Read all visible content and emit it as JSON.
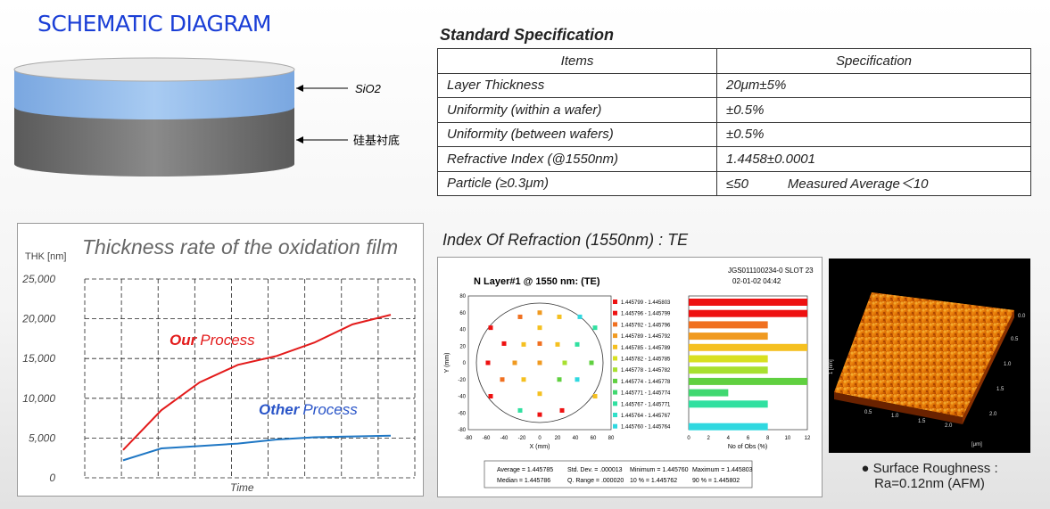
{
  "schematic": {
    "title": "SCHEMATIC DIAGRAM",
    "layer_top_label": "SiO2",
    "layer_bottom_label": "硅基衬底",
    "colors": {
      "sio2": "#8ab4e6",
      "substrate": "#6f6f6f"
    }
  },
  "spec": {
    "title": "Standard Specification",
    "headers": [
      "Items",
      "Specification"
    ],
    "rows": [
      {
        "item": "Layer Thickness",
        "value": "20μm±5%",
        "extra": ""
      },
      {
        "item": "Uniformity (within a wafer)",
        "value": "±0.5%",
        "extra": ""
      },
      {
        "item": "Uniformity (between wafers)",
        "value": "±0.5%",
        "extra": ""
      },
      {
        "item": "Refractive Index (@1550nm)",
        "value": "1.4458±0.0001",
        "extra": ""
      },
      {
        "item": "Particle (≥0.3μm)",
        "value": "≤50",
        "extra": "Measured Average＜10"
      }
    ]
  },
  "chart_data": {
    "type": "line",
    "title": "Thickness rate of the oxidation film",
    "ylabel": "THK [nm]",
    "xlabel": "Time",
    "ylim": [
      0,
      25000
    ],
    "yticks": [
      "25,000",
      "20,000",
      "15,000",
      "10,000",
      "5,000",
      "0"
    ],
    "x": [
      1,
      2,
      3,
      4,
      5,
      6,
      7,
      8
    ],
    "grid": true,
    "series": [
      {
        "name": "Our Process",
        "name_bold": "Our",
        "name_rest": "Process",
        "color": "#e31b1b",
        "values": [
          3500,
          8500,
          12000,
          14200,
          15300,
          17000,
          19300,
          20500
        ]
      },
      {
        "name": "Other Process",
        "name_bold": "Other",
        "name_rest": "Process",
        "color": "#1f77c4",
        "values": [
          2200,
          3700,
          4000,
          4300,
          4800,
          5100,
          5200,
          5300
        ]
      }
    ]
  },
  "refraction": {
    "title": "Index Of Refraction (1550nm) : TE",
    "plot_title": "N Layer#1 @ 1550 nm:   (TE)",
    "slot": "JGS011100234-0 SLOT 23",
    "date": "02-01-02 04:42",
    "map_x_label": "X (mm)",
    "map_y_label": "Y (mm)",
    "map_ticks": [
      "-80",
      "-60",
      "-40",
      "-20",
      "0",
      "20",
      "40",
      "60",
      "80"
    ],
    "hist_x_label": "No of Obs (%)",
    "hist_ticks": [
      "0",
      "2",
      "4",
      "6",
      "8",
      "10",
      "12"
    ],
    "bins": [
      {
        "range": "1.445799 - 1.445803",
        "color": "#ee1111",
        "pct": 12
      },
      {
        "range": "1.445796 - 1.445799",
        "color": "#ee1111",
        "pct": 12
      },
      {
        "range": "1.445792 - 1.445796",
        "color": "#f07020",
        "pct": 8
      },
      {
        "range": "1.445789 - 1.445792",
        "color": "#f09a20",
        "pct": 8
      },
      {
        "range": "1.445785 - 1.445789",
        "color": "#f5c020",
        "pct": 12
      },
      {
        "range": "1.445782 - 1.445785",
        "color": "#d8e020",
        "pct": 8
      },
      {
        "range": "1.445778 - 1.445782",
        "color": "#a8e030",
        "pct": 8
      },
      {
        "range": "1.445774 - 1.445778",
        "color": "#60d040",
        "pct": 12
      },
      {
        "range": "1.445771 - 1.445774",
        "color": "#40d870",
        "pct": 4
      },
      {
        "range": "1.445767 - 1.445771",
        "color": "#30e0a0",
        "pct": 8
      },
      {
        "range": "1.445764 - 1.445767",
        "color": "#30e0c8",
        "pct": 0
      },
      {
        "range": "1.445760 - 1.445764",
        "color": "#30d8e0",
        "pct": 8
      }
    ],
    "points": [
      {
        "x": 0,
        "y": 60,
        "c": "#f09a20"
      },
      {
        "x": -22,
        "y": 55,
        "c": "#f07020"
      },
      {
        "x": 22,
        "y": 55,
        "c": "#f5c020"
      },
      {
        "x": 45,
        "y": 55,
        "c": "#30d8e0"
      },
      {
        "x": -55,
        "y": 42,
        "c": "#ee1111"
      },
      {
        "x": 0,
        "y": 42,
        "c": "#f5c020"
      },
      {
        "x": 62,
        "y": 42,
        "c": "#30e0a0"
      },
      {
        "x": -40,
        "y": 23,
        "c": "#ee1111"
      },
      {
        "x": -18,
        "y": 22,
        "c": "#f5c020"
      },
      {
        "x": 0,
        "y": 23,
        "c": "#f07020"
      },
      {
        "x": 20,
        "y": 22,
        "c": "#f5c020"
      },
      {
        "x": 42,
        "y": 22,
        "c": "#30e0a0"
      },
      {
        "x": -58,
        "y": 0,
        "c": "#ee1111"
      },
      {
        "x": -28,
        "y": 0,
        "c": "#f09a20"
      },
      {
        "x": 0,
        "y": 0,
        "c": "#f09a20"
      },
      {
        "x": 28,
        "y": 0,
        "c": "#a8e030"
      },
      {
        "x": 58,
        "y": 0,
        "c": "#60d040"
      },
      {
        "x": -42,
        "y": -20,
        "c": "#f07020"
      },
      {
        "x": -18,
        "y": -20,
        "c": "#f5c020"
      },
      {
        "x": 22,
        "y": -20,
        "c": "#60d040"
      },
      {
        "x": 42,
        "y": -20,
        "c": "#30d8e0"
      },
      {
        "x": -55,
        "y": -40,
        "c": "#ee1111"
      },
      {
        "x": 0,
        "y": -37,
        "c": "#f5c020"
      },
      {
        "x": 62,
        "y": -40,
        "c": "#f5c020"
      },
      {
        "x": -22,
        "y": -57,
        "c": "#30e0a0"
      },
      {
        "x": 0,
        "y": -62,
        "c": "#ee1111"
      },
      {
        "x": 25,
        "y": -57,
        "c": "#ee1111"
      }
    ],
    "stats": {
      "average": "Average = 1.445785",
      "std": "Std. Dev. = .000013",
      "minimum": "Minimum = 1.445760",
      "maximum": "Maximum = 1.445803",
      "median": "Median = 1.445786",
      "qrange": "Q. Range = .000020",
      "p10": "10 % = 1.445762",
      "p90": "90 % = 1.445802"
    }
  },
  "afm": {
    "x_ticks": [
      "0.5",
      "1.0",
      "1.5",
      "2.0"
    ],
    "y_ticks": [
      "0.0",
      "0.5",
      "1.0",
      "1.5",
      "2.0"
    ],
    "y_label": "1 [nm]",
    "unit_label": "[μm]",
    "caption_line1": "Surface Roughness :",
    "caption_line2": "Ra=0.12nm    (AFM)"
  }
}
